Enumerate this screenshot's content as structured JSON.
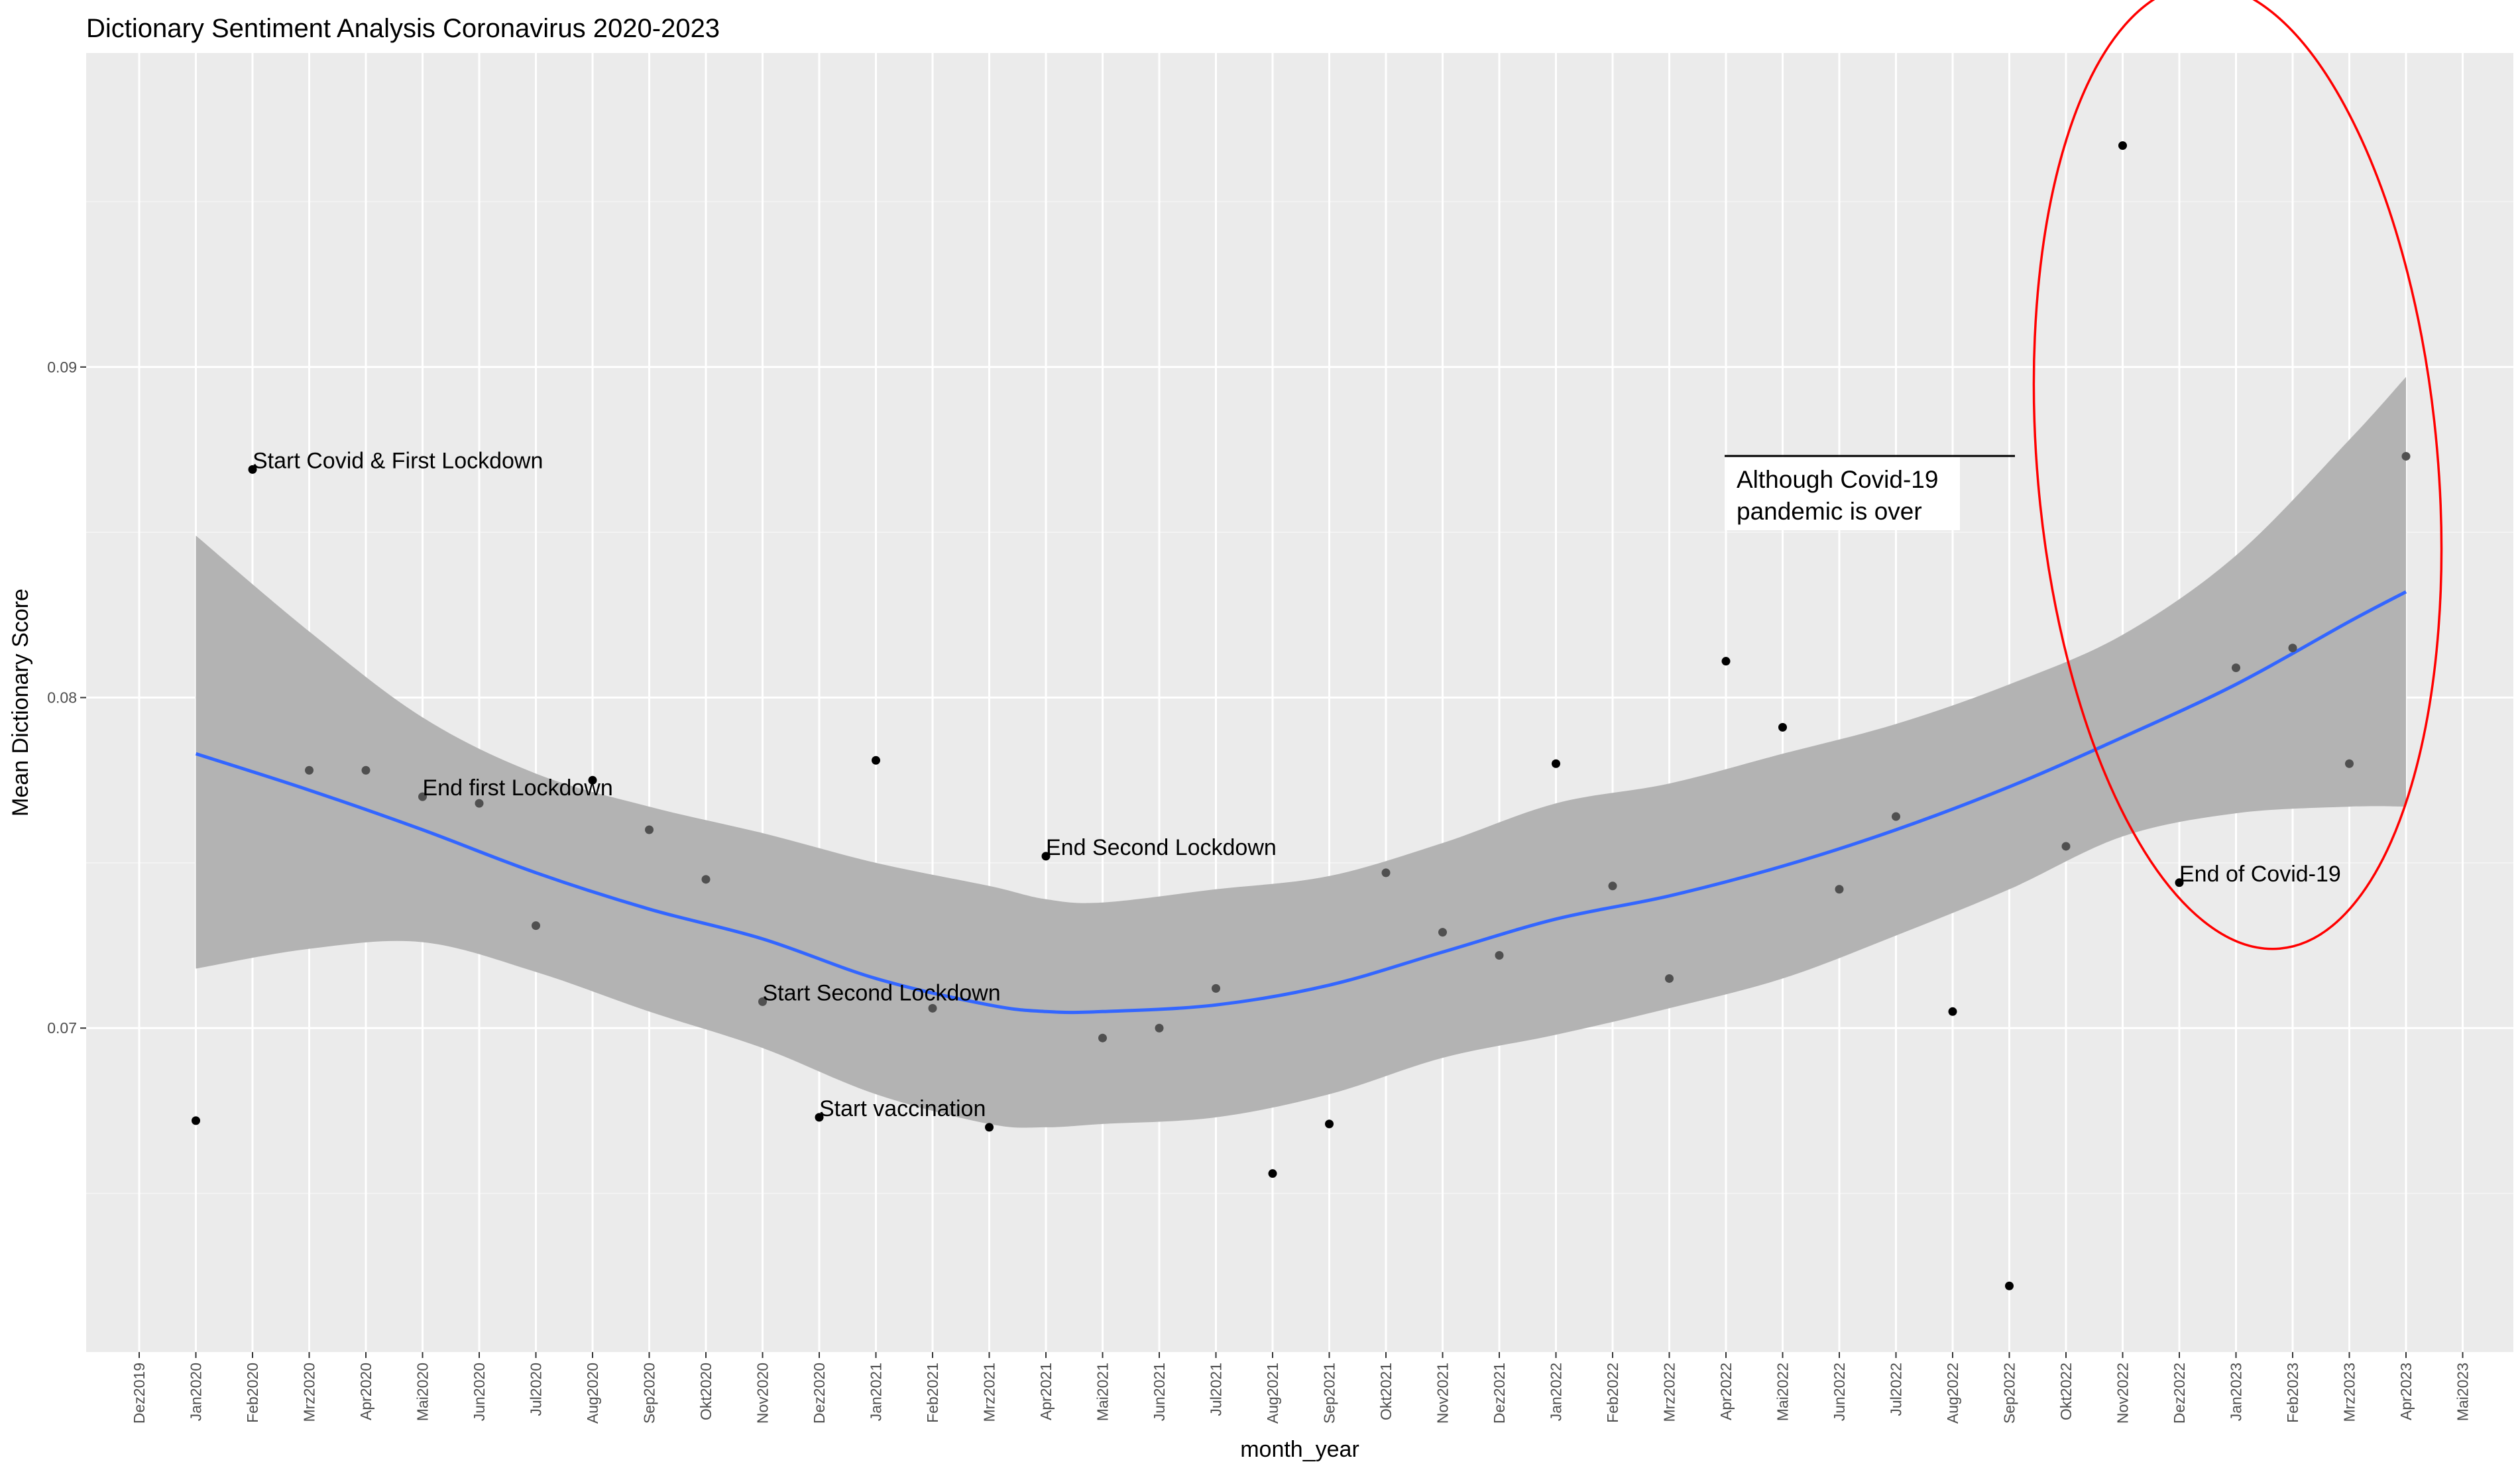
{
  "chart_data": {
    "type": "scatter",
    "title": "Dictionary Sentiment Analysis Coronavirus 2020-2023",
    "xlabel": "month_year",
    "ylabel": "Mean Dictionary Score",
    "x_categories": [
      "Dez2019",
      "Jan2020",
      "Feb2020",
      "Mrz2020",
      "Apr2020",
      "Mai2020",
      "Jun2020",
      "Jul2020",
      "Aug2020",
      "Sep2020",
      "Okt2020",
      "Nov2020",
      "Dez2020",
      "Jan2021",
      "Feb2021",
      "Mrz2021",
      "Apr2021",
      "Mai2021",
      "Jun2021",
      "Jul2021",
      "Aug2021",
      "Sep2021",
      "Okt2021",
      "Nov2021",
      "Dez2021",
      "Jan2022",
      "Feb2022",
      "Mrz2022",
      "Apr2022",
      "Mai2022",
      "Jun2022",
      "Jul2022",
      "Aug2022",
      "Sep2022",
      "Okt2022",
      "Nov2022",
      "Dez2022",
      "Jan2023",
      "Feb2023",
      "Mrz2023",
      "Apr2023",
      "Mai2023"
    ],
    "y_ticks": [
      0.07,
      0.08,
      0.09
    ],
    "y_tick_labels": [
      "0.07",
      "0.08",
      "0.09"
    ],
    "ylim": [
      0.0602,
      0.0995
    ],
    "grid": true,
    "points": [
      {
        "x": "Jan2020",
        "y": 0.0672
      },
      {
        "x": "Feb2020",
        "y": 0.0869
      },
      {
        "x": "Mrz2020",
        "y": 0.0778
      },
      {
        "x": "Apr2020",
        "y": 0.0778
      },
      {
        "x": "Mai2020",
        "y": 0.077
      },
      {
        "x": "Jun2020",
        "y": 0.0768
      },
      {
        "x": "Jul2020",
        "y": 0.0731
      },
      {
        "x": "Aug2020",
        "y": 0.0775
      },
      {
        "x": "Sep2020",
        "y": 0.076
      },
      {
        "x": "Okt2020",
        "y": 0.0745
      },
      {
        "x": "Nov2020",
        "y": 0.0708
      },
      {
        "x": "Dez2020",
        "y": 0.0673
      },
      {
        "x": "Jan2021",
        "y": 0.0781
      },
      {
        "x": "Feb2021",
        "y": 0.0706
      },
      {
        "x": "Mrz2021",
        "y": 0.067
      },
      {
        "x": "Apr2021",
        "y": 0.0752
      },
      {
        "x": "Mai2021",
        "y": 0.0697
      },
      {
        "x": "Jun2021",
        "y": 0.07
      },
      {
        "x": "Jul2021",
        "y": 0.0712
      },
      {
        "x": "Aug2021",
        "y": 0.0656
      },
      {
        "x": "Sep2021",
        "y": 0.0671
      },
      {
        "x": "Okt2021",
        "y": 0.0747
      },
      {
        "x": "Nov2021",
        "y": 0.0729
      },
      {
        "x": "Dez2021",
        "y": 0.0722
      },
      {
        "x": "Jan2022",
        "y": 0.078
      },
      {
        "x": "Feb2022",
        "y": 0.0743
      },
      {
        "x": "Mrz2022",
        "y": 0.0715
      },
      {
        "x": "Apr2022",
        "y": 0.0811
      },
      {
        "x": "Mai2022",
        "y": 0.0791
      },
      {
        "x": "Jun2022",
        "y": 0.0742
      },
      {
        "x": "Jul2022",
        "y": 0.0764
      },
      {
        "x": "Aug2022",
        "y": 0.0705
      },
      {
        "x": "Sep2022",
        "y": 0.0622
      },
      {
        "x": "Okt2022",
        "y": 0.0755
      },
      {
        "x": "Nov2022",
        "y": 0.0967
      },
      {
        "x": "Dez2022",
        "y": 0.0744
      },
      {
        "x": "Jan2023",
        "y": 0.0809
      },
      {
        "x": "Feb2023",
        "y": 0.0815
      },
      {
        "x": "Mrz2023",
        "y": 0.078
      },
      {
        "x": "Apr2023",
        "y": 0.0873
      }
    ],
    "smooth": {
      "method": "loess",
      "color": "#3366ff",
      "x": [
        "Jan2020",
        "Mrz2020",
        "Mai2020",
        "Jul2020",
        "Sep2020",
        "Nov2020",
        "Jan2021",
        "Mrz2021",
        "Apr2021",
        "Mai2021",
        "Jul2021",
        "Sep2021",
        "Nov2021",
        "Jan2022",
        "Mrz2022",
        "Mai2022",
        "Jul2022",
        "Sep2022",
        "Nov2022",
        "Jan2023",
        "Mrz2023",
        "Apr2023"
      ],
      "y": [
        0.0783,
        0.0772,
        0.076,
        0.0747,
        0.0736,
        0.0727,
        0.0715,
        0.0707,
        0.0705,
        0.0705,
        0.0707,
        0.0713,
        0.0723,
        0.0733,
        0.074,
        0.0749,
        0.076,
        0.0773,
        0.0788,
        0.0804,
        0.0823,
        0.0832
      ],
      "lower": [
        0.0718,
        0.0724,
        0.0726,
        0.0717,
        0.0705,
        0.0694,
        0.068,
        0.0671,
        0.067,
        0.0671,
        0.0673,
        0.068,
        0.0691,
        0.0698,
        0.0706,
        0.0715,
        0.0728,
        0.0742,
        0.0758,
        0.0765,
        0.0767,
        0.0767
      ],
      "upper": [
        0.0849,
        0.082,
        0.0794,
        0.0777,
        0.0767,
        0.0759,
        0.075,
        0.0743,
        0.0739,
        0.0738,
        0.0742,
        0.0746,
        0.0756,
        0.0768,
        0.0774,
        0.0783,
        0.0792,
        0.0804,
        0.0819,
        0.0843,
        0.0878,
        0.0897
      ]
    },
    "annotations": [
      {
        "text": "Start Covid & First Lockdown",
        "x": "Feb2020",
        "y": 0.0869,
        "color": "#000000"
      },
      {
        "text": "End first Lockdown",
        "x": "Mai2020",
        "y": 0.077,
        "color": "#595959"
      },
      {
        "text": "Start Second Lockdown",
        "x": "Nov2020",
        "y": 0.0708,
        "color": "#595959"
      },
      {
        "text": "Start vaccination",
        "x": "Dez2020",
        "y": 0.0673,
        "color": "#000000"
      },
      {
        "text": "End Second Lockdown",
        "x": "Apr2021",
        "y": 0.0752,
        "color": "#000000"
      },
      {
        "text": "End of Covid-19",
        "x": "Dez2022",
        "y": 0.0744,
        "color": "#000000"
      }
    ],
    "note": {
      "lines": [
        "Although Covid-19",
        "pandemic is over"
      ]
    },
    "highlight_ellipse_color": "#ff0000"
  }
}
